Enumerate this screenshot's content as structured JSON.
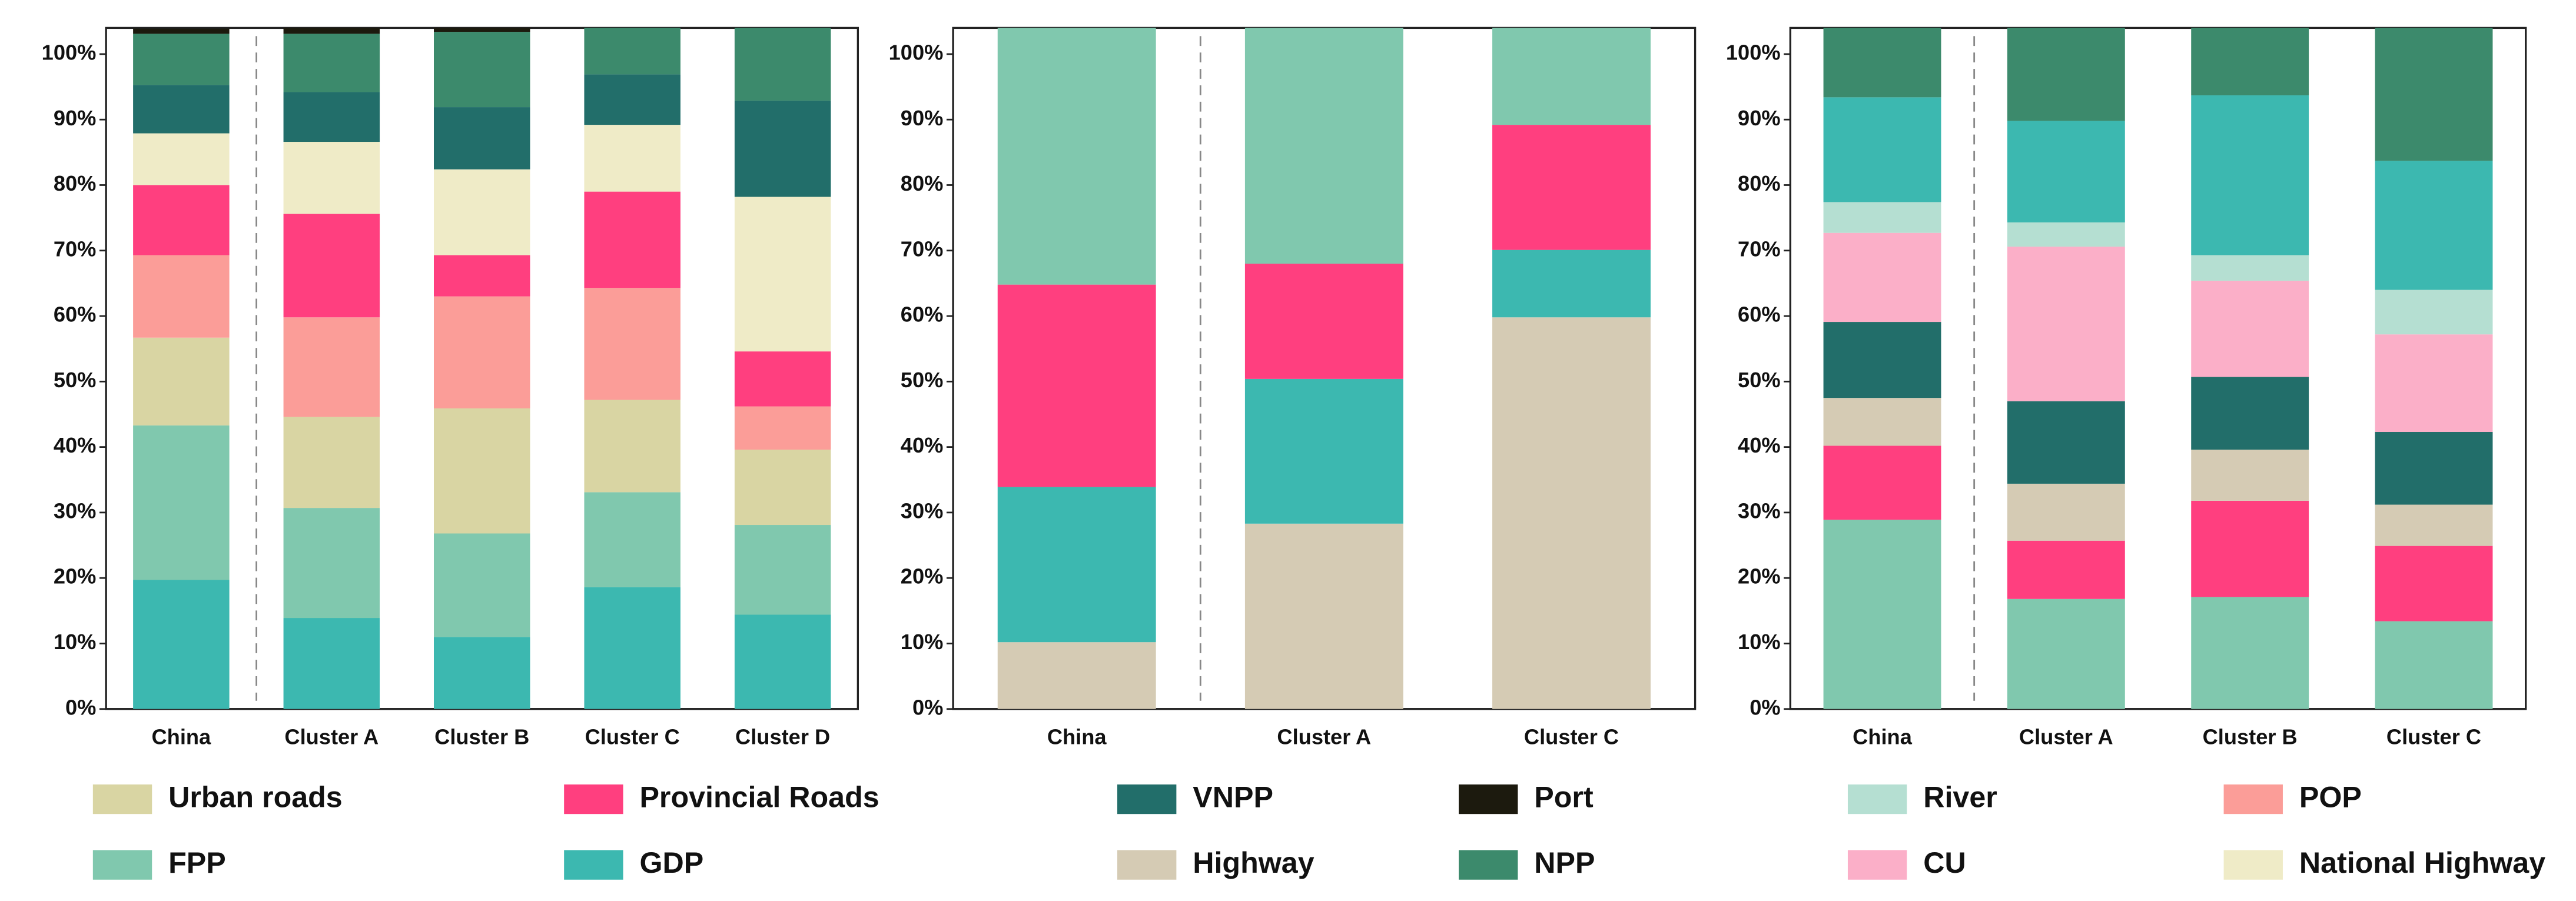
{
  "legend": [
    {
      "name": "Urban roads",
      "color": "#d9d5a3"
    },
    {
      "name": "Provincial Roads",
      "color": "#ff3f7f"
    },
    {
      "name": "VNPP",
      "color": "#226e6a"
    },
    {
      "name": "Port",
      "color": "#1c1a0e"
    },
    {
      "name": "River",
      "color": "#b5dfd2"
    },
    {
      "name": "POP",
      "color": "#fb9d98"
    },
    {
      "name": "FPP",
      "color": "#80c8ae"
    },
    {
      "name": "GDP",
      "color": "#3cb8b0"
    },
    {
      "name": "Highway",
      "color": "#d5cbb4"
    },
    {
      "name": "NPP",
      "color": "#3c8a6c"
    },
    {
      "name": "CU",
      "color": "#fbafc8"
    },
    {
      "name": "National Highway",
      "color": "#efebc7"
    }
  ],
  "chart_data": [
    {
      "type": "stacked_bar",
      "categories": [
        "China",
        "Cluster A",
        "Cluster B",
        "Cluster C",
        "Cluster D"
      ],
      "ylim": [
        0,
        104
      ],
      "yticks": [
        {
          "value": 0,
          "label": "0%"
        },
        {
          "value": 10,
          "label": "10%"
        },
        {
          "value": 20,
          "label": "20%"
        },
        {
          "value": 30,
          "label": "30%"
        },
        {
          "value": 40,
          "label": "40%"
        },
        {
          "value": 50,
          "label": "50%"
        },
        {
          "value": 60,
          "label": "60%"
        },
        {
          "value": 70,
          "label": "70%"
        },
        {
          "value": 80,
          "label": "80%"
        },
        {
          "value": 90,
          "label": "90%"
        },
        {
          "value": 100,
          "label": "100%"
        }
      ],
      "series": [
        {
          "name": "GDP",
          "values": [
            19.7,
            13.9,
            11,
            18.6,
            14.4
          ]
        },
        {
          "name": "FPP",
          "values": [
            23.6,
            16.8,
            15.8,
            14.5,
            13.7
          ]
        },
        {
          "name": "Urban roads",
          "values": [
            13.4,
            13.9,
            19.1,
            14.1,
            11.5
          ]
        },
        {
          "name": "POP",
          "values": [
            12.6,
            15.2,
            17.1,
            17.1,
            6.6
          ]
        },
        {
          "name": "Provincial Roads",
          "values": [
            10.7,
            15.8,
            6.3,
            14.7,
            8.4
          ]
        },
        {
          "name": "National Highway",
          "values": [
            7.9,
            11,
            13.1,
            10.2,
            23.6
          ]
        },
        {
          "name": "VNPP",
          "values": [
            7.4,
            7.6,
            9.5,
            7.7,
            14.7
          ]
        },
        {
          "name": "NPP",
          "values": [
            7.8,
            8.9,
            11.5,
            7.1,
            11.1
          ]
        },
        {
          "name": "Port",
          "values": [
            0.8,
            0.9,
            0.6,
            0,
            0
          ]
        }
      ]
    },
    {
      "type": "stacked_bar",
      "categories": [
        "China",
        "Cluster A",
        "Cluster C"
      ],
      "ylim": [
        0,
        104
      ],
      "yticks": [
        {
          "value": 0,
          "label": "0%"
        },
        {
          "value": 10,
          "label": "10%"
        },
        {
          "value": 20,
          "label": "20%"
        },
        {
          "value": 30,
          "label": "30%"
        },
        {
          "value": 40,
          "label": "40%"
        },
        {
          "value": 50,
          "label": "50%"
        },
        {
          "value": 60,
          "label": "60%"
        },
        {
          "value": 70,
          "label": "70%"
        },
        {
          "value": 80,
          "label": "80%"
        },
        {
          "value": 90,
          "label": "90%"
        },
        {
          "value": 100,
          "label": "100%"
        }
      ],
      "series": [
        {
          "name": "Highway",
          "values": [
            10.2,
            28.3,
            59.8
          ]
        },
        {
          "name": "GDP",
          "values": [
            23.7,
            22.1,
            10.3
          ]
        },
        {
          "name": "Provincial Roads",
          "values": [
            30.9,
            17.6,
            19.1
          ]
        },
        {
          "name": "FPP",
          "values": [
            39.2,
            36,
            14.8
          ]
        }
      ]
    },
    {
      "type": "stacked_bar",
      "categories": [
        "China",
        "Cluster A",
        "Cluster B",
        "Cluster C"
      ],
      "ylim": [
        0,
        104
      ],
      "yticks": [
        {
          "value": 0,
          "label": "0%"
        },
        {
          "value": 10,
          "label": "10%"
        },
        {
          "value": 20,
          "label": "20%"
        },
        {
          "value": 30,
          "label": "30%"
        },
        {
          "value": 40,
          "label": "40%"
        },
        {
          "value": 50,
          "label": "50%"
        },
        {
          "value": 60,
          "label": "60%"
        },
        {
          "value": 70,
          "label": "70%"
        },
        {
          "value": 80,
          "label": "80%"
        },
        {
          "value": 90,
          "label": "90%"
        },
        {
          "value": 100,
          "label": "100%"
        }
      ],
      "series": [
        {
          "name": "FPP",
          "values": [
            28.9,
            16.8,
            17.1,
            13.4
          ]
        },
        {
          "name": "Provincial Roads",
          "values": [
            11.3,
            8.9,
            14.7,
            11.5
          ]
        },
        {
          "name": "Highway",
          "values": [
            7.3,
            8.7,
            7.8,
            6.3
          ]
        },
        {
          "name": "VNPP",
          "values": [
            11.6,
            12.6,
            11.1,
            11.1
          ]
        },
        {
          "name": "CU",
          "values": [
            13.6,
            23.6,
            14.7,
            14.9
          ]
        },
        {
          "name": "River",
          "values": [
            4.7,
            3.7,
            3.9,
            6.8
          ]
        },
        {
          "name": "GDP",
          "values": [
            16,
            15.5,
            24.4,
            19.7
          ]
        },
        {
          "name": "NPP",
          "values": [
            10.6,
            14.2,
            10.3,
            20.3
          ]
        }
      ]
    }
  ]
}
